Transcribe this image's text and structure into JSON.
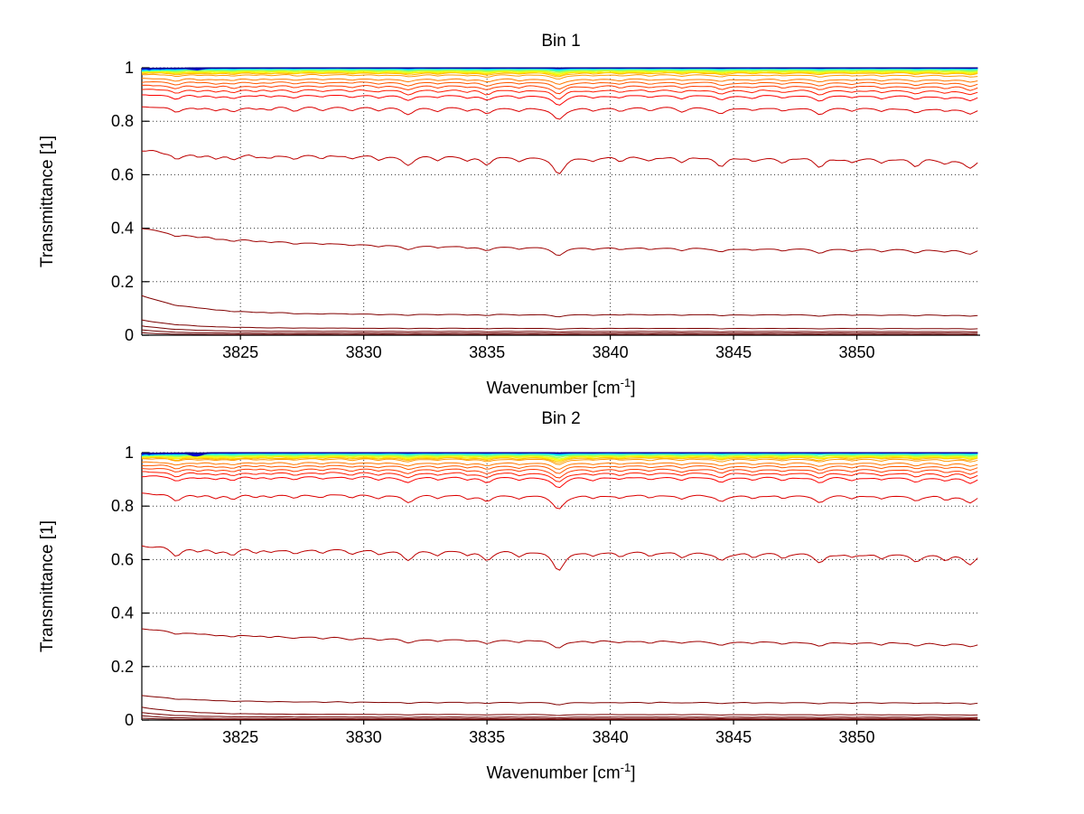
{
  "chart_data": [
    {
      "type": "line",
      "title": "Bin 1",
      "xlabel": "Wavenumber [cm^-1]",
      "xlabel_parts": {
        "main": "Wavenumber [cm",
        "sup": "-1",
        "end": "]"
      },
      "ylabel": "Transmittance [1]",
      "xlim": [
        3821,
        3855
      ],
      "ylim": [
        0,
        1
      ],
      "x_ticks": [
        3825,
        3830,
        3835,
        3840,
        3845,
        3850
      ],
      "y_ticks": [
        0,
        0.2,
        0.4,
        0.6,
        0.8,
        1
      ],
      "y_tick_labels": [
        "0",
        "0.2",
        "0.4",
        "0.6",
        "0.8",
        "1"
      ],
      "grid": true,
      "legend": false,
      "n_series": 38,
      "seed": 11,
      "absorption_lines": [
        [
          3822.4,
          0.9,
          0.25
        ],
        [
          3823.3,
          0.4,
          0.2
        ],
        [
          3824.0,
          0.5,
          0.22
        ],
        [
          3824.7,
          0.7,
          0.25
        ],
        [
          3825.6,
          0.35,
          0.18
        ],
        [
          3826.2,
          0.45,
          0.2
        ],
        [
          3827.2,
          0.6,
          0.25
        ],
        [
          3828.3,
          0.45,
          0.2
        ],
        [
          3829.5,
          0.5,
          0.22
        ],
        [
          3830.6,
          0.55,
          0.22
        ],
        [
          3831.8,
          1.1,
          0.28
        ],
        [
          3833.0,
          0.55,
          0.2
        ],
        [
          3834.2,
          0.5,
          0.2
        ],
        [
          3835.0,
          1.0,
          0.26
        ],
        [
          3836.3,
          0.55,
          0.2
        ],
        [
          3837.9,
          2.0,
          0.3
        ],
        [
          3839.3,
          0.5,
          0.2
        ],
        [
          3840.4,
          0.55,
          0.2
        ],
        [
          3841.6,
          0.45,
          0.2
        ],
        [
          3842.9,
          0.6,
          0.22
        ],
        [
          3844.5,
          0.95,
          0.26
        ],
        [
          3845.8,
          0.5,
          0.2
        ],
        [
          3847.0,
          0.55,
          0.2
        ],
        [
          3848.5,
          1.0,
          0.26
        ],
        [
          3849.8,
          0.5,
          0.2
        ],
        [
          3851.0,
          0.55,
          0.2
        ],
        [
          3852.4,
          0.8,
          0.24
        ],
        [
          3853.6,
          0.6,
          0.22
        ],
        [
          3854.6,
          1.0,
          0.26
        ]
      ],
      "series_fields": [
        "color",
        "baseline",
        "dip_scale",
        "wiggle",
        "edge_noise",
        "left_boost",
        "left_tau",
        "slope",
        "blue_dip_depth"
      ],
      "series": [
        [
          "#000080",
          1.0,
          0.0005,
          0.0005,
          0.006,
          0,
          1,
          0,
          0
        ],
        [
          "#00009E",
          0.99995,
          0.0005,
          0.0005,
          0.005,
          0,
          1,
          0,
          0
        ],
        [
          "#0000BD",
          0.9999,
          0.0006,
          0.0005,
          0.008,
          0,
          1,
          0,
          0.005
        ],
        [
          "#0000DC",
          0.9998,
          0.0007,
          0.0006,
          0.004,
          0,
          1,
          0,
          0
        ],
        [
          "#0000FB",
          0.9997,
          0.0008,
          0.0006,
          0.01,
          0,
          1,
          0,
          0.007
        ],
        [
          "#001BFF",
          0.99955,
          0.0009,
          0.0007,
          0.005,
          0,
          1,
          0,
          0
        ],
        [
          "#003AFF",
          0.9994,
          0.001,
          0.0007,
          0.012,
          0,
          1,
          0,
          0.004
        ],
        [
          "#0059FF",
          0.9992,
          0.0011,
          0.0008,
          0.006,
          0,
          1,
          0,
          0
        ],
        [
          "#0078FF",
          0.99895,
          0.0013,
          0.0009,
          0.01,
          0,
          1,
          0,
          0
        ],
        [
          "#0097FF",
          0.9987,
          0.0015,
          0.001,
          0.014,
          0,
          1,
          0,
          0
        ],
        [
          "#00B6FF",
          0.9984,
          0.0017,
          0.0011,
          0.008,
          0,
          1,
          0,
          0
        ],
        [
          "#00D4FF",
          0.998,
          0.0019,
          0.0012,
          0.012,
          0,
          1,
          0,
          0
        ],
        [
          "#00F3FF",
          0.9975,
          0.0022,
          0.0013,
          0.016,
          0,
          1,
          0,
          0
        ],
        [
          "#13FFEC",
          0.9969,
          0.0025,
          0.0014,
          0.01,
          0,
          1,
          0,
          0
        ],
        [
          "#32FFCD",
          0.9962,
          0.0028,
          0.0015,
          0.014,
          0,
          1,
          0,
          0
        ],
        [
          "#51FFAE",
          0.9953,
          0.0032,
          0.0016,
          0.01,
          0,
          1,
          0,
          0
        ],
        [
          "#70FF8F",
          0.9943,
          0.0036,
          0.0017,
          0.012,
          0,
          1,
          0,
          0
        ],
        [
          "#8FFF70",
          0.9931,
          0.004,
          0.0018,
          0.008,
          0,
          1,
          0,
          0
        ],
        [
          "#AEFF51",
          0.9917,
          0.0045,
          0.0019,
          0.008,
          0,
          1,
          0,
          0
        ],
        [
          "#CDFF32",
          0.9901,
          0.005,
          0.002,
          0.006,
          0,
          1,
          0,
          0
        ],
        [
          "#ECFF13",
          0.9883,
          0.0056,
          0.0021,
          0.006,
          0,
          1,
          0,
          0
        ],
        [
          "#FFF300",
          0.9863,
          0.0062,
          0.0022,
          0.005,
          0,
          1,
          0,
          0
        ],
        [
          "#FFD400",
          0.984,
          0.0069,
          0.0023,
          0.004,
          0,
          1,
          0,
          0
        ],
        [
          "#FFB600",
          0.9814,
          0.0077,
          0.0024,
          0.004,
          0,
          1,
          0,
          0
        ],
        [
          "#FF9700",
          0.976,
          0.0086,
          0.0025,
          0.003,
          0,
          1,
          -0.003,
          0
        ],
        [
          "#FF7800",
          0.961,
          0.011,
          0.0028,
          0.002,
          0,
          1,
          -0.004,
          0
        ],
        [
          "#FF5900",
          0.949,
          0.013,
          0.003,
          0.002,
          0,
          1,
          -0.004,
          0
        ],
        [
          "#FF3A00",
          0.936,
          0.015,
          0.0032,
          0.002,
          0,
          1,
          -0.004,
          0
        ],
        [
          "#FF1B00",
          0.921,
          0.017,
          0.0034,
          0.002,
          0,
          1,
          -0.005,
          0
        ],
        [
          "#FB0000",
          0.901,
          0.019,
          0.0036,
          0.002,
          0,
          1,
          -0.005,
          0
        ],
        [
          "#DC0000",
          0.856,
          0.024,
          0.004,
          0.002,
          0,
          1,
          -0.006,
          0
        ],
        [
          "#BD0000",
          0.682,
          0.034,
          0.005,
          0,
          0.012,
          1.5,
          -0.022,
          0
        ],
        [
          "#9E0000",
          0.338,
          0.016,
          0.003,
          0,
          0.062,
          4.5,
          -0.018,
          0
        ],
        [
          "#800000",
          0.08,
          0.005,
          0.0012,
          0,
          0.068,
          2.2,
          -0.004,
          0
        ],
        [
          "#7A0000",
          0.027,
          0.002,
          0.0006,
          0,
          0.03,
          1.8,
          -0.002,
          0
        ],
        [
          "#740000",
          0.015,
          0.0015,
          0.0005,
          0,
          0.02,
          1.5,
          -0.001,
          0
        ],
        [
          "#6D0000",
          0.008,
          0.001,
          0.0004,
          0,
          0.012,
          1.2,
          0,
          0
        ],
        [
          "#660000",
          0.003,
          0.0006,
          0.0003,
          0,
          0.006,
          1.0,
          0,
          0
        ]
      ]
    },
    {
      "type": "line",
      "title": "Bin 2",
      "xlabel": "Wavenumber [cm^-1]",
      "xlabel_parts": {
        "main": "Wavenumber [cm",
        "sup": "-1",
        "end": "]"
      },
      "ylabel": "Transmittance [1]",
      "xlim": [
        3821,
        3855
      ],
      "ylim": [
        0,
        1
      ],
      "x_ticks": [
        3825,
        3830,
        3835,
        3840,
        3845,
        3850
      ],
      "y_ticks": [
        0,
        0.2,
        0.4,
        0.6,
        0.8,
        1
      ],
      "y_tick_labels": [
        "0",
        "0.2",
        "0.4",
        "0.6",
        "0.8",
        "1"
      ],
      "grid": true,
      "legend": false,
      "n_series": 38,
      "seed": 77,
      "absorption_lines": [
        [
          3822.4,
          0.9,
          0.25
        ],
        [
          3823.3,
          0.4,
          0.2
        ],
        [
          3824.0,
          0.5,
          0.22
        ],
        [
          3824.7,
          0.7,
          0.25
        ],
        [
          3825.6,
          0.35,
          0.18
        ],
        [
          3826.2,
          0.45,
          0.2
        ],
        [
          3827.2,
          0.6,
          0.25
        ],
        [
          3828.3,
          0.45,
          0.2
        ],
        [
          3829.5,
          0.5,
          0.22
        ],
        [
          3830.6,
          0.55,
          0.22
        ],
        [
          3831.8,
          1.1,
          0.28
        ],
        [
          3833.0,
          0.55,
          0.2
        ],
        [
          3834.2,
          0.5,
          0.2
        ],
        [
          3835.0,
          1.0,
          0.26
        ],
        [
          3836.3,
          0.55,
          0.2
        ],
        [
          3837.9,
          2.0,
          0.3
        ],
        [
          3839.3,
          0.5,
          0.2
        ],
        [
          3840.4,
          0.55,
          0.2
        ],
        [
          3841.6,
          0.45,
          0.2
        ],
        [
          3842.9,
          0.6,
          0.22
        ],
        [
          3844.5,
          0.95,
          0.26
        ],
        [
          3845.8,
          0.5,
          0.2
        ],
        [
          3847.0,
          0.55,
          0.2
        ],
        [
          3848.5,
          1.0,
          0.26
        ],
        [
          3849.8,
          0.5,
          0.2
        ],
        [
          3851.0,
          0.55,
          0.2
        ],
        [
          3852.4,
          0.8,
          0.24
        ],
        [
          3853.6,
          0.6,
          0.22
        ],
        [
          3854.6,
          1.0,
          0.26
        ]
      ],
      "series_fields": [
        "color",
        "baseline",
        "dip_scale",
        "wiggle",
        "edge_noise",
        "left_boost",
        "left_tau",
        "slope",
        "blue_dip_depth"
      ],
      "series": [
        [
          "#000080",
          1.0,
          0.0005,
          0.0005,
          0.005,
          0,
          1,
          0,
          0
        ],
        [
          "#00009E",
          0.99995,
          0.0005,
          0.0005,
          0.006,
          0,
          1,
          0,
          0.004
        ],
        [
          "#0000BD",
          0.9999,
          0.0006,
          0.0005,
          0.006,
          0,
          1,
          0,
          0.012
        ],
        [
          "#0000DC",
          0.9998,
          0.0007,
          0.0006,
          0.008,
          0,
          1,
          0,
          0.007
        ],
        [
          "#0000FB",
          0.9997,
          0.0008,
          0.0006,
          0.006,
          0,
          1,
          0,
          0.01
        ],
        [
          "#001BFF",
          0.99955,
          0.0009,
          0.0007,
          0.01,
          0,
          1,
          0,
          0.006
        ],
        [
          "#003AFF",
          0.9994,
          0.001,
          0.0007,
          0.006,
          0,
          1,
          0,
          0.009
        ],
        [
          "#0059FF",
          0.9992,
          0.0011,
          0.0008,
          0.012,
          0,
          1,
          0,
          0.005
        ],
        [
          "#0078FF",
          0.99895,
          0.0013,
          0.0009,
          0.008,
          0,
          1,
          0,
          0.007
        ],
        [
          "#0097FF",
          0.9987,
          0.0015,
          0.001,
          0.012,
          0,
          1,
          0,
          0
        ],
        [
          "#00B6FF",
          0.9984,
          0.0017,
          0.0011,
          0.01,
          0,
          1,
          0,
          0
        ],
        [
          "#00D4FF",
          0.998,
          0.0019,
          0.0012,
          0.014,
          0,
          1,
          0,
          0
        ],
        [
          "#00F3FF",
          0.9975,
          0.0022,
          0.0013,
          0.01,
          0,
          1,
          0,
          0
        ],
        [
          "#13FFEC",
          0.9969,
          0.0025,
          0.0014,
          0.012,
          0,
          1,
          0,
          0
        ],
        [
          "#32FFCD",
          0.9962,
          0.0028,
          0.0015,
          0.01,
          0,
          1,
          0,
          0
        ],
        [
          "#51FFAE",
          0.9953,
          0.0032,
          0.0016,
          0.012,
          0,
          1,
          0,
          0
        ],
        [
          "#70FF8F",
          0.9943,
          0.0036,
          0.0017,
          0.01,
          0,
          1,
          0,
          0
        ],
        [
          "#8FFF70",
          0.9932,
          0.0052,
          0.0018,
          0.008,
          0,
          1,
          0,
          0
        ],
        [
          "#AEFF51",
          0.9919,
          0.0058,
          0.0019,
          0.008,
          0,
          1,
          0,
          0
        ],
        [
          "#CDFF32",
          0.9904,
          0.0065,
          0.002,
          0.006,
          0,
          1,
          0,
          0
        ],
        [
          "#ECFF13",
          0.9887,
          0.0073,
          0.0021,
          0.006,
          0,
          1,
          0,
          0
        ],
        [
          "#FFF300",
          0.9868,
          0.008,
          0.0022,
          0.005,
          0,
          1,
          0,
          0
        ],
        [
          "#FFD400",
          0.9846,
          0.009,
          0.0023,
          0.004,
          0,
          1,
          0,
          0
        ],
        [
          "#FFB600",
          0.982,
          0.01,
          0.0024,
          0.004,
          0,
          1,
          0,
          0
        ],
        [
          "#FF9700",
          0.979,
          0.011,
          0.0025,
          0.003,
          0,
          1,
          -0.003,
          0
        ],
        [
          "#FF7800",
          0.9655,
          0.013,
          0.0028,
          0.002,
          0,
          1,
          -0.004,
          0
        ],
        [
          "#FF5900",
          0.9545,
          0.015,
          0.003,
          0.002,
          0,
          1,
          -0.004,
          0
        ],
        [
          "#FF3A00",
          0.9425,
          0.017,
          0.0032,
          0.002,
          0,
          1,
          -0.005,
          0
        ],
        [
          "#FF1B00",
          0.929,
          0.019,
          0.0034,
          0.002,
          0,
          1,
          -0.005,
          0
        ],
        [
          "#FB0000",
          0.9135,
          0.021,
          0.0036,
          0.002,
          0,
          1,
          -0.006,
          0
        ],
        [
          "#DC0000",
          0.848,
          0.028,
          0.004,
          0.002,
          0,
          1,
          -0.007,
          0
        ],
        [
          "#BD0000",
          0.648,
          0.036,
          0.005,
          0,
          0.004,
          1.5,
          -0.028,
          0
        ],
        [
          "#9E0000",
          0.308,
          0.015,
          0.003,
          0,
          0.034,
          5.0,
          -0.02,
          0
        ],
        [
          "#800000",
          0.068,
          0.0045,
          0.0012,
          0,
          0.024,
          2.5,
          -0.003,
          0
        ],
        [
          "#7A0000",
          0.022,
          0.002,
          0.0006,
          0,
          0.026,
          1.8,
          -0.002,
          0
        ],
        [
          "#740000",
          0.012,
          0.0015,
          0.0005,
          0,
          0.016,
          1.5,
          -0.001,
          0
        ],
        [
          "#6D0000",
          0.006,
          0.001,
          0.0004,
          0,
          0.01,
          1.2,
          0,
          0
        ],
        [
          "#660000",
          0.002,
          0.0006,
          0.0003,
          0,
          0.005,
          1.0,
          0,
          0
        ]
      ]
    }
  ],
  "style": {
    "background": "#ffffff",
    "axis_color": "#000000",
    "grid_color": "#333333",
    "text_color": "#000000"
  }
}
